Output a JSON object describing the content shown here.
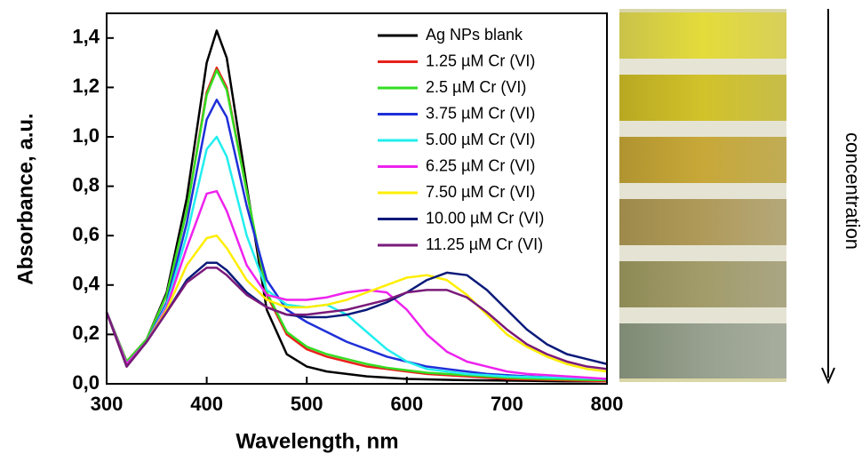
{
  "chart_data": {
    "type": "line",
    "x_label": "Wavelength, nm",
    "y_label": "Absorbance, a.u.",
    "xlim": [
      300,
      800
    ],
    "ylim": [
      0,
      1.5
    ],
    "xticks": [
      300,
      400,
      500,
      600,
      700,
      800
    ],
    "yticks": [
      {
        "value": 0,
        "label": "0,0"
      },
      {
        "value": 0.2,
        "label": "0,2"
      },
      {
        "value": 0.4,
        "label": "0,4"
      },
      {
        "value": 0.6,
        "label": "0,6"
      },
      {
        "value": 0.8,
        "label": "0,8"
      },
      {
        "value": 1.0,
        "label": "1,0"
      },
      {
        "value": 1.2,
        "label": "1,2"
      },
      {
        "value": 1.4,
        "label": "1,4"
      }
    ],
    "legend": "upper right",
    "x": [
      300,
      320,
      340,
      360,
      380,
      400,
      410,
      420,
      440,
      460,
      480,
      500,
      520,
      540,
      560,
      580,
      600,
      620,
      640,
      660,
      680,
      700,
      720,
      740,
      760,
      780,
      800
    ],
    "series": [
      {
        "name": "Ag NPs blank",
        "color": "#000000",
        "values": [
          0.29,
          0.09,
          0.18,
          0.37,
          0.75,
          1.3,
          1.43,
          1.32,
          0.8,
          0.3,
          0.12,
          0.07,
          0.05,
          0.04,
          0.03,
          0.025,
          0.02,
          0.018,
          0.016,
          0.015,
          0.014,
          0.013,
          0.012,
          0.011,
          0.01,
          0.01,
          0.01
        ]
      },
      {
        "name": "1.25 µM Cr (VI)",
        "color": "#e8211c",
        "values": [
          0.29,
          0.09,
          0.18,
          0.36,
          0.7,
          1.18,
          1.28,
          1.2,
          0.78,
          0.36,
          0.2,
          0.14,
          0.11,
          0.09,
          0.07,
          0.06,
          0.05,
          0.04,
          0.035,
          0.03,
          0.025,
          0.02,
          0.018,
          0.016,
          0.014,
          0.012,
          0.01
        ]
      },
      {
        "name": "2.5 µM Cr (VI)",
        "color": "#33dd22",
        "values": [
          0.29,
          0.09,
          0.18,
          0.36,
          0.7,
          1.17,
          1.27,
          1.19,
          0.78,
          0.37,
          0.21,
          0.15,
          0.12,
          0.1,
          0.08,
          0.065,
          0.055,
          0.045,
          0.04,
          0.035,
          0.03,
          0.025,
          0.022,
          0.02,
          0.018,
          0.016,
          0.015
        ]
      },
      {
        "name": "3.75 µM Cr (VI)",
        "color": "#1f2fd8",
        "values": [
          0.29,
          0.08,
          0.17,
          0.33,
          0.65,
          1.07,
          1.15,
          1.08,
          0.72,
          0.42,
          0.3,
          0.25,
          0.21,
          0.17,
          0.14,
          0.11,
          0.09,
          0.07,
          0.06,
          0.05,
          0.04,
          0.035,
          0.03,
          0.027,
          0.024,
          0.022,
          0.02
        ]
      },
      {
        "name": "5.00 µM Cr (VI)",
        "color": "#22eeee",
        "values": [
          0.29,
          0.08,
          0.17,
          0.32,
          0.6,
          0.95,
          1.0,
          0.92,
          0.6,
          0.38,
          0.32,
          0.31,
          0.32,
          0.28,
          0.21,
          0.14,
          0.09,
          0.06,
          0.05,
          0.04,
          0.035,
          0.03,
          0.028,
          0.026,
          0.024,
          0.022,
          0.02
        ]
      },
      {
        "name": "6.25 µM Cr (VI)",
        "color": "#ee22ee",
        "values": [
          0.29,
          0.08,
          0.17,
          0.31,
          0.55,
          0.77,
          0.78,
          0.7,
          0.48,
          0.36,
          0.34,
          0.34,
          0.35,
          0.37,
          0.38,
          0.37,
          0.3,
          0.2,
          0.13,
          0.09,
          0.07,
          0.05,
          0.04,
          0.035,
          0.03,
          0.025,
          0.02
        ]
      },
      {
        "name": "7.50 µM Cr (VI)",
        "color": "#ffee00",
        "values": [
          0.29,
          0.07,
          0.17,
          0.3,
          0.48,
          0.59,
          0.6,
          0.55,
          0.42,
          0.34,
          0.31,
          0.31,
          0.32,
          0.34,
          0.37,
          0.4,
          0.43,
          0.44,
          0.42,
          0.36,
          0.28,
          0.2,
          0.15,
          0.11,
          0.08,
          0.06,
          0.05
        ]
      },
      {
        "name": "10.00 µM Cr (VI)",
        "color": "#0a1a7a",
        "values": [
          0.29,
          0.07,
          0.17,
          0.29,
          0.42,
          0.49,
          0.49,
          0.46,
          0.37,
          0.31,
          0.28,
          0.27,
          0.27,
          0.28,
          0.3,
          0.33,
          0.37,
          0.42,
          0.45,
          0.44,
          0.38,
          0.3,
          0.22,
          0.16,
          0.12,
          0.1,
          0.08
        ]
      },
      {
        "name": "11.25 µM Cr (VI)",
        "color": "#7a1a7a",
        "values": [
          0.29,
          0.07,
          0.17,
          0.29,
          0.41,
          0.47,
          0.47,
          0.44,
          0.36,
          0.31,
          0.28,
          0.28,
          0.29,
          0.3,
          0.32,
          0.34,
          0.37,
          0.38,
          0.38,
          0.35,
          0.29,
          0.22,
          0.16,
          0.12,
          0.09,
          0.07,
          0.06
        ]
      }
    ]
  },
  "photo": {
    "label": "concentration"
  }
}
